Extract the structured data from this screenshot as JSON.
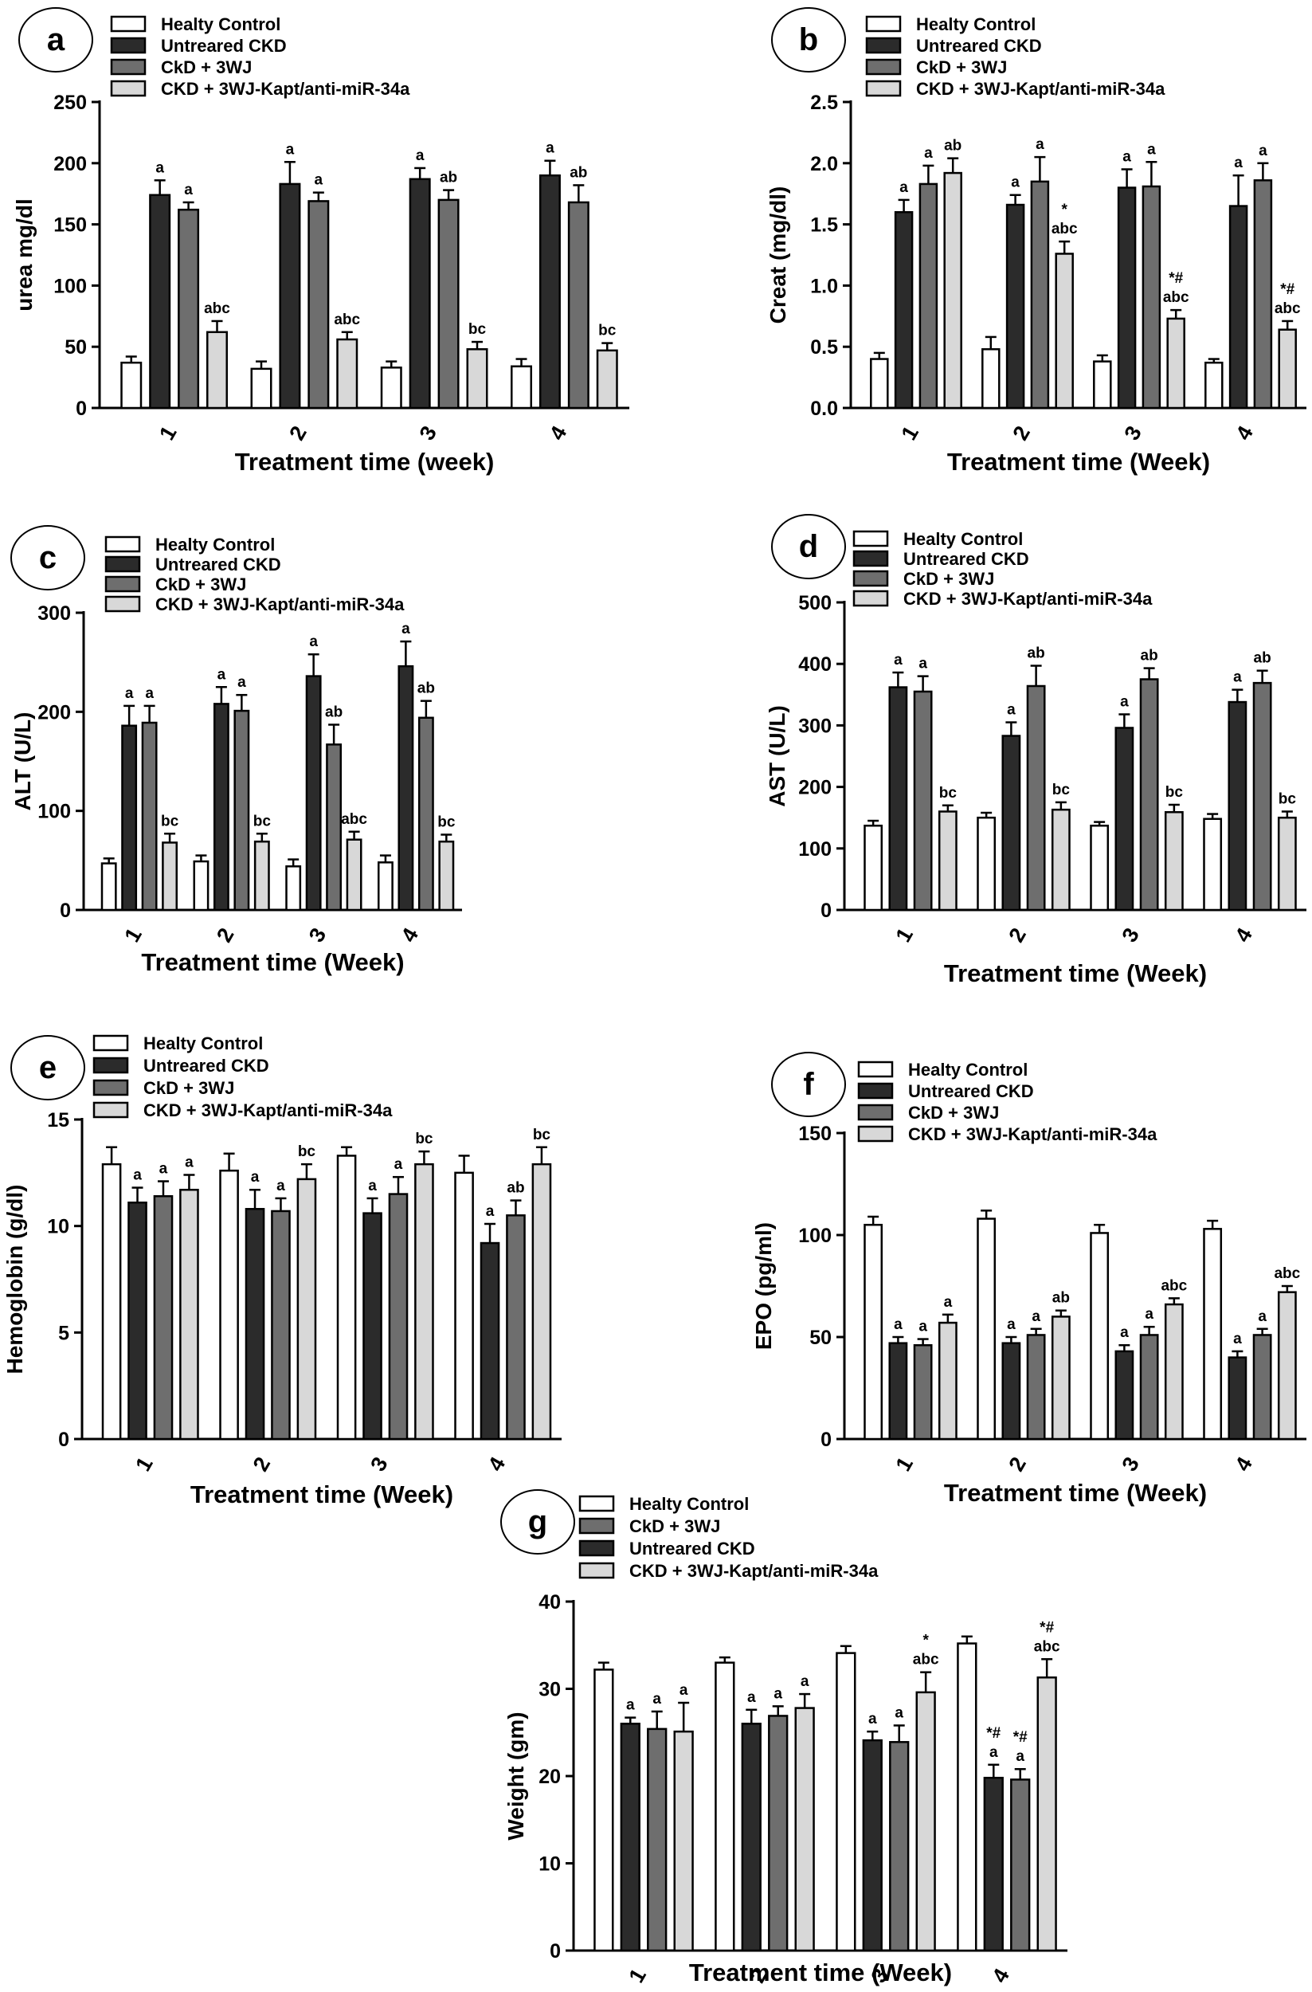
{
  "figure": {
    "palette": {
      "Healty Control": "#ffffff",
      "Untreared CKD": "#2b2b2b",
      "CkD + 3WJ": "#6e6e6e",
      "CKD + 3WJ-Kapt/anti-miR-34a": "#d8d8d8"
    }
  },
  "chart_data": [
    {
      "panel": "a",
      "type": "bar",
      "categories": [
        "1",
        "2",
        "3",
        "4"
      ],
      "xlabel": "Treatment time (week)",
      "ylabel": "urea mg/dl",
      "ylim": [
        0,
        250
      ],
      "yticks": [
        0,
        50,
        100,
        150,
        200,
        250
      ],
      "legend": [
        "Healty Control",
        "Untreared CKD",
        "CkD + 3WJ",
        "CKD + 3WJ-Kapt/anti-miR-34a"
      ],
      "series": [
        {
          "name": "Healty Control",
          "values": [
            37,
            32,
            33,
            34
          ],
          "errors": [
            5,
            6,
            5,
            6
          ],
          "labels": [
            "",
            "",
            "",
            ""
          ]
        },
        {
          "name": "Untreared CKD",
          "values": [
            174,
            183,
            187,
            190
          ],
          "errors": [
            12,
            18,
            9,
            12
          ],
          "labels": [
            "a",
            "a",
            "a",
            "a"
          ]
        },
        {
          "name": "CkD + 3WJ",
          "values": [
            162,
            169,
            170,
            168
          ],
          "errors": [
            6,
            7,
            8,
            14
          ],
          "labels": [
            "a",
            "a",
            "ab",
            "ab"
          ]
        },
        {
          "name": "CKD + 3WJ-Kapt/anti-miR-34a",
          "values": [
            62,
            56,
            48,
            47
          ],
          "errors": [
            9,
            6,
            6,
            6
          ],
          "labels": [
            "abc",
            "abc",
            "bc",
            "bc"
          ]
        }
      ]
    },
    {
      "panel": "b",
      "type": "bar",
      "categories": [
        "1",
        "2",
        "3",
        "4"
      ],
      "xlabel": "Treatment time (Week)",
      "ylabel": "Creat (mg/dl)",
      "ylim": [
        0,
        2.5
      ],
      "yticks": [
        "0.0",
        "0.5",
        "1.0",
        "1.5",
        "2.0",
        "2.5"
      ],
      "legend": [
        "Healty Control",
        "Untreared CKD",
        "CkD + 3WJ",
        "CKD + 3WJ-Kapt/anti-miR-34a"
      ],
      "series": [
        {
          "name": "Healty Control",
          "values": [
            0.4,
            0.48,
            0.38,
            0.37
          ],
          "errors": [
            0.05,
            0.1,
            0.05,
            0.03
          ],
          "labels": [
            "",
            "",
            "",
            ""
          ]
        },
        {
          "name": "Untreared CKD",
          "values": [
            1.6,
            1.66,
            1.8,
            1.65
          ],
          "errors": [
            0.1,
            0.08,
            0.15,
            0.25
          ],
          "labels": [
            "a",
            "a",
            "a",
            "a"
          ]
        },
        {
          "name": "CkD + 3WJ",
          "values": [
            1.83,
            1.85,
            1.81,
            1.86
          ],
          "errors": [
            0.15,
            0.2,
            0.2,
            0.14
          ],
          "labels": [
            "a",
            "a",
            "a",
            "a"
          ]
        },
        {
          "name": "CKD + 3WJ-Kapt/anti-miR-34a",
          "values": [
            1.92,
            1.26,
            0.73,
            0.64
          ],
          "errors": [
            0.12,
            0.1,
            0.07,
            0.07
          ],
          "labels": [
            "ab",
            "abc",
            "abc",
            "abc"
          ]
        }
      ],
      "extra_marks": [
        {
          "category": "2",
          "text": "*"
        },
        {
          "category": "3",
          "text": "*#"
        },
        {
          "category": "4",
          "text": "*#"
        }
      ]
    },
    {
      "panel": "c",
      "type": "bar",
      "categories": [
        "1",
        "2",
        "3",
        "4"
      ],
      "xlabel": "Treatment time (Week)",
      "ylabel": "ALT (U/L)",
      "ylim": [
        0,
        300
      ],
      "yticks": [
        0,
        100,
        200,
        300
      ],
      "legend": [
        "Healty Control",
        "Untreared CKD",
        "CkD + 3WJ",
        "CKD + 3WJ-Kapt/anti-miR-34a"
      ],
      "series": [
        {
          "name": "Healty Control",
          "values": [
            47,
            49,
            44,
            48
          ],
          "errors": [
            5,
            6,
            7,
            7
          ],
          "labels": [
            "",
            "",
            "",
            ""
          ]
        },
        {
          "name": "Untreared CKD",
          "values": [
            186,
            208,
            236,
            246
          ],
          "errors": [
            20,
            17,
            22,
            25
          ],
          "labels": [
            "a",
            "a",
            "a",
            "a"
          ]
        },
        {
          "name": "CkD + 3WJ",
          "values": [
            189,
            201,
            167,
            194
          ],
          "errors": [
            17,
            16,
            20,
            17
          ],
          "labels": [
            "a",
            "a",
            "ab",
            "ab"
          ]
        },
        {
          "name": "CKD + 3WJ-Kapt/anti-miR-34a",
          "values": [
            68,
            69,
            71,
            69
          ],
          "errors": [
            9,
            8,
            8,
            7
          ],
          "labels": [
            "bc",
            "bc",
            "abc",
            "bc"
          ]
        }
      ]
    },
    {
      "panel": "d",
      "type": "bar",
      "categories": [
        "1",
        "2",
        "3",
        "4"
      ],
      "xlabel": "Treatment time (Week)",
      "ylabel": "AST (U/L)",
      "ylim": [
        0,
        500
      ],
      "yticks": [
        0,
        100,
        200,
        300,
        400,
        500
      ],
      "legend": [
        "Healty Control",
        "Untreared CKD",
        "CkD + 3WJ",
        "CKD + 3WJ-Kapt/anti-miR-34a"
      ],
      "series": [
        {
          "name": "Healty Control",
          "values": [
            137,
            150,
            137,
            148
          ],
          "errors": [
            8,
            8,
            6,
            8
          ],
          "labels": [
            "",
            "",
            "",
            ""
          ]
        },
        {
          "name": "Untreared CKD",
          "values": [
            362,
            283,
            296,
            338
          ],
          "errors": [
            24,
            22,
            22,
            20
          ],
          "labels": [
            "a",
            "a",
            "a",
            "a"
          ]
        },
        {
          "name": "CkD + 3WJ",
          "values": [
            355,
            364,
            375,
            369
          ],
          "errors": [
            25,
            33,
            18,
            20
          ],
          "labels": [
            "a",
            "ab",
            "ab",
            "ab"
          ]
        },
        {
          "name": "CKD + 3WJ-Kapt/anti-miR-34a",
          "values": [
            160,
            163,
            159,
            150
          ],
          "errors": [
            10,
            12,
            12,
            10
          ],
          "labels": [
            "bc",
            "bc",
            "bc",
            "bc"
          ]
        }
      ]
    },
    {
      "panel": "e",
      "type": "bar",
      "categories": [
        "1",
        "2",
        "3",
        "4"
      ],
      "xlabel": "Treatment time (Week)",
      "ylabel": "Hemoglobin (g/dl)",
      "ylim": [
        0,
        15
      ],
      "yticks": [
        0,
        5,
        10,
        15
      ],
      "legend": [
        "Healty Control",
        "Untreared CKD",
        "CkD + 3WJ",
        "CKD + 3WJ-Kapt/anti-miR-34a"
      ],
      "series": [
        {
          "name": "Healty Control",
          "values": [
            12.9,
            12.6,
            13.3,
            12.5
          ],
          "errors": [
            0.8,
            0.8,
            0.4,
            0.8
          ],
          "labels": [
            "",
            "",
            "",
            ""
          ]
        },
        {
          "name": "Untreared CKD",
          "values": [
            11.1,
            10.8,
            10.6,
            9.2
          ],
          "errors": [
            0.7,
            0.9,
            0.7,
            0.9
          ],
          "labels": [
            "a",
            "a",
            "a",
            "a"
          ]
        },
        {
          "name": "CkD + 3WJ",
          "values": [
            11.4,
            10.7,
            11.5,
            10.5
          ],
          "errors": [
            0.7,
            0.6,
            0.8,
            0.7
          ],
          "labels": [
            "a",
            "a",
            "a",
            "ab"
          ]
        },
        {
          "name": "CKD + 3WJ-Kapt/anti-miR-34a",
          "values": [
            11.7,
            12.2,
            12.9,
            12.9
          ],
          "errors": [
            0.7,
            0.7,
            0.6,
            0.8
          ],
          "labels": [
            "a",
            "bc",
            "bc",
            "bc"
          ]
        }
      ]
    },
    {
      "panel": "f",
      "type": "bar",
      "categories": [
        "1",
        "2",
        "3",
        "4"
      ],
      "xlabel": "Treatment time (Week)",
      "ylabel": "EPO (pg/ml)",
      "ylim": [
        0,
        150
      ],
      "yticks": [
        0,
        50,
        100,
        150
      ],
      "legend": [
        "Healty Control",
        "Untreared CKD",
        "CkD + 3WJ",
        "CKD + 3WJ-Kapt/anti-miR-34a"
      ],
      "series": [
        {
          "name": "Healty Control",
          "values": [
            105,
            108,
            101,
            103
          ],
          "errors": [
            4,
            4,
            4,
            4
          ],
          "labels": [
            "",
            "",
            "",
            ""
          ]
        },
        {
          "name": "Untreared CKD",
          "values": [
            47,
            47,
            43,
            40
          ],
          "errors": [
            3,
            3,
            3,
            3
          ],
          "labels": [
            "a",
            "a",
            "a",
            "a"
          ]
        },
        {
          "name": "CkD + 3WJ",
          "values": [
            46,
            51,
            51,
            51
          ],
          "errors": [
            3,
            3,
            4,
            3
          ],
          "labels": [
            "a",
            "a",
            "a",
            "a"
          ]
        },
        {
          "name": "CKD + 3WJ-Kapt/anti-miR-34a",
          "values": [
            57,
            60,
            66,
            72
          ],
          "errors": [
            4,
            3,
            3,
            3
          ],
          "labels": [
            "a",
            "ab",
            "abc",
            "abc"
          ]
        }
      ]
    },
    {
      "panel": "g",
      "type": "bar",
      "categories": [
        "1",
        "2",
        "3",
        "4"
      ],
      "xlabel": "Treatment time (Week)",
      "ylabel": "Weight (gm)",
      "ylim": [
        0,
        40
      ],
      "yticks": [
        0,
        10,
        20,
        30,
        40
      ],
      "legend": [
        "Healty Control",
        "CkD + 3WJ",
        "Untreared CKD",
        "CKD + 3WJ-Kapt/anti-miR-34a"
      ],
      "series": [
        {
          "name": "Healty Control",
          "values": [
            32.2,
            33.0,
            34.1,
            35.2
          ],
          "errors": [
            0.8,
            0.6,
            0.8,
            0.8
          ],
          "labels": [
            "",
            "",
            "",
            ""
          ]
        },
        {
          "name": "Untreared CKD",
          "values": [
            26.0,
            26.0,
            24.1,
            19.8
          ],
          "errors": [
            0.7,
            1.6,
            1.0,
            1.5
          ],
          "labels": [
            "a",
            "a",
            "a",
            "a"
          ]
        },
        {
          "name": "CkD + 3WJ",
          "values": [
            25.4,
            26.9,
            23.9,
            19.6
          ],
          "errors": [
            2.0,
            1.1,
            1.9,
            1.2
          ],
          "labels": [
            "a",
            "a",
            "a",
            "a"
          ]
        },
        {
          "name": "CKD + 3WJ-Kapt/anti-miR-34a",
          "values": [
            25.1,
            27.8,
            29.6,
            31.3
          ],
          "errors": [
            3.3,
            1.6,
            2.3,
            2.1
          ],
          "labels": [
            "a",
            "a",
            "abc",
            "abc"
          ]
        }
      ],
      "extra_marks": [
        {
          "category": "3",
          "series": "CKD + 3WJ-Kapt/anti-miR-34a",
          "text": "*"
        },
        {
          "category": "4",
          "series": "Untreared CKD",
          "text": "*#"
        },
        {
          "category": "4",
          "series": "CkD + 3WJ",
          "text": "*#"
        },
        {
          "category": "4",
          "series": "CKD + 3WJ-Kapt/anti-miR-34a",
          "text": "*#"
        }
      ]
    }
  ]
}
